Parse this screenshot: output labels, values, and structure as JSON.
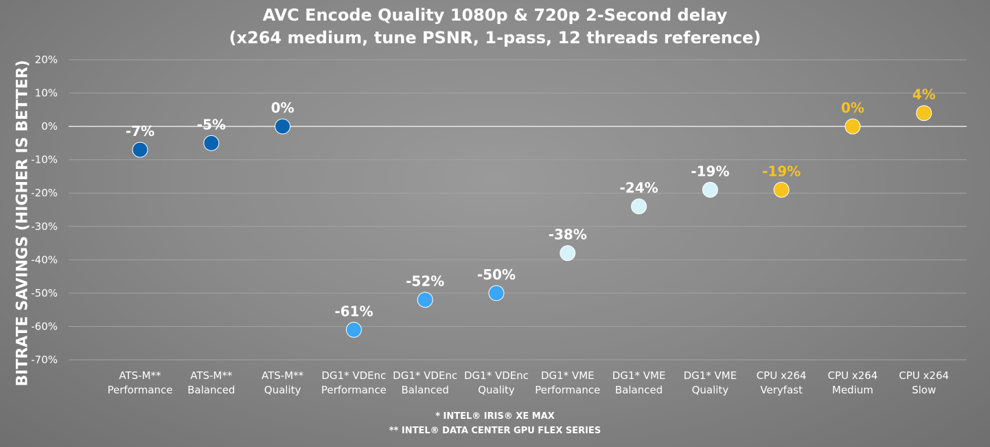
{
  "chart_data": {
    "type": "scatter",
    "title": "AVC Encode Quality 1080p & 720p 2-Second delay",
    "subtitle": "(x264 medium, tune PSNR, 1-pass, 12 threads reference)",
    "ylabel": "BITRATE SAVINGS (HIGHER IS BETTER)",
    "ylim": [
      -70,
      20
    ],
    "yticks": [
      "20%",
      "10%",
      "0%",
      "-10%",
      "-20%",
      "-30%",
      "-40%",
      "-50%",
      "-60%",
      "-70%"
    ],
    "ytick_values": [
      20,
      10,
      0,
      -10,
      -20,
      -30,
      -40,
      -50,
      -60,
      -70
    ],
    "grid": true,
    "categories": [
      [
        "ATS-M**",
        "Performance"
      ],
      [
        "ATS-M**",
        "Balanced"
      ],
      [
        "ATS-M**",
        "Quality"
      ],
      [
        "DG1* VDEnc",
        "Performance"
      ],
      [
        "DG1* VDEnc",
        "Balanced"
      ],
      [
        "DG1* VDEnc",
        "Quality"
      ],
      [
        "DG1* VME",
        "Performance"
      ],
      [
        "DG1* VME",
        "Balanced"
      ],
      [
        "DG1* VME",
        "Quality"
      ],
      [
        "CPU x264",
        "Veryfast"
      ],
      [
        "CPU x264",
        "Medium"
      ],
      [
        "CPU x264",
        "Slow"
      ]
    ],
    "values": [
      -7,
      -5,
      0,
      -61,
      -52,
      -50,
      -38,
      -24,
      -19,
      -19,
      0,
      4
    ],
    "data_labels": [
      "-7%",
      "-5%",
      "0%",
      "-61%",
      "-52%",
      "-50%",
      "-38%",
      "-24%",
      "-19%",
      "-19%",
      "0%",
      "4%"
    ],
    "point_colors": [
      "#0a63b0",
      "#0a63b0",
      "#0a63b0",
      "#3aa6f5",
      "#3aa6f5",
      "#3aa6f5",
      "#d8f2fa",
      "#d8f2fa",
      "#d8f2fa",
      "#f7c31d",
      "#f7c31d",
      "#f7c31d"
    ],
    "label_colors": [
      "#ffffff",
      "#ffffff",
      "#ffffff",
      "#ffffff",
      "#ffffff",
      "#ffffff",
      "#ffffff",
      "#ffffff",
      "#ffffff",
      "#f7c31d",
      "#f7c31d",
      "#f7c31d"
    ]
  },
  "footnotes": [
    "* INTEL® IRIS® XE MAX",
    "** INTEL® DATA CENTER GPU FLEX SERIES"
  ]
}
